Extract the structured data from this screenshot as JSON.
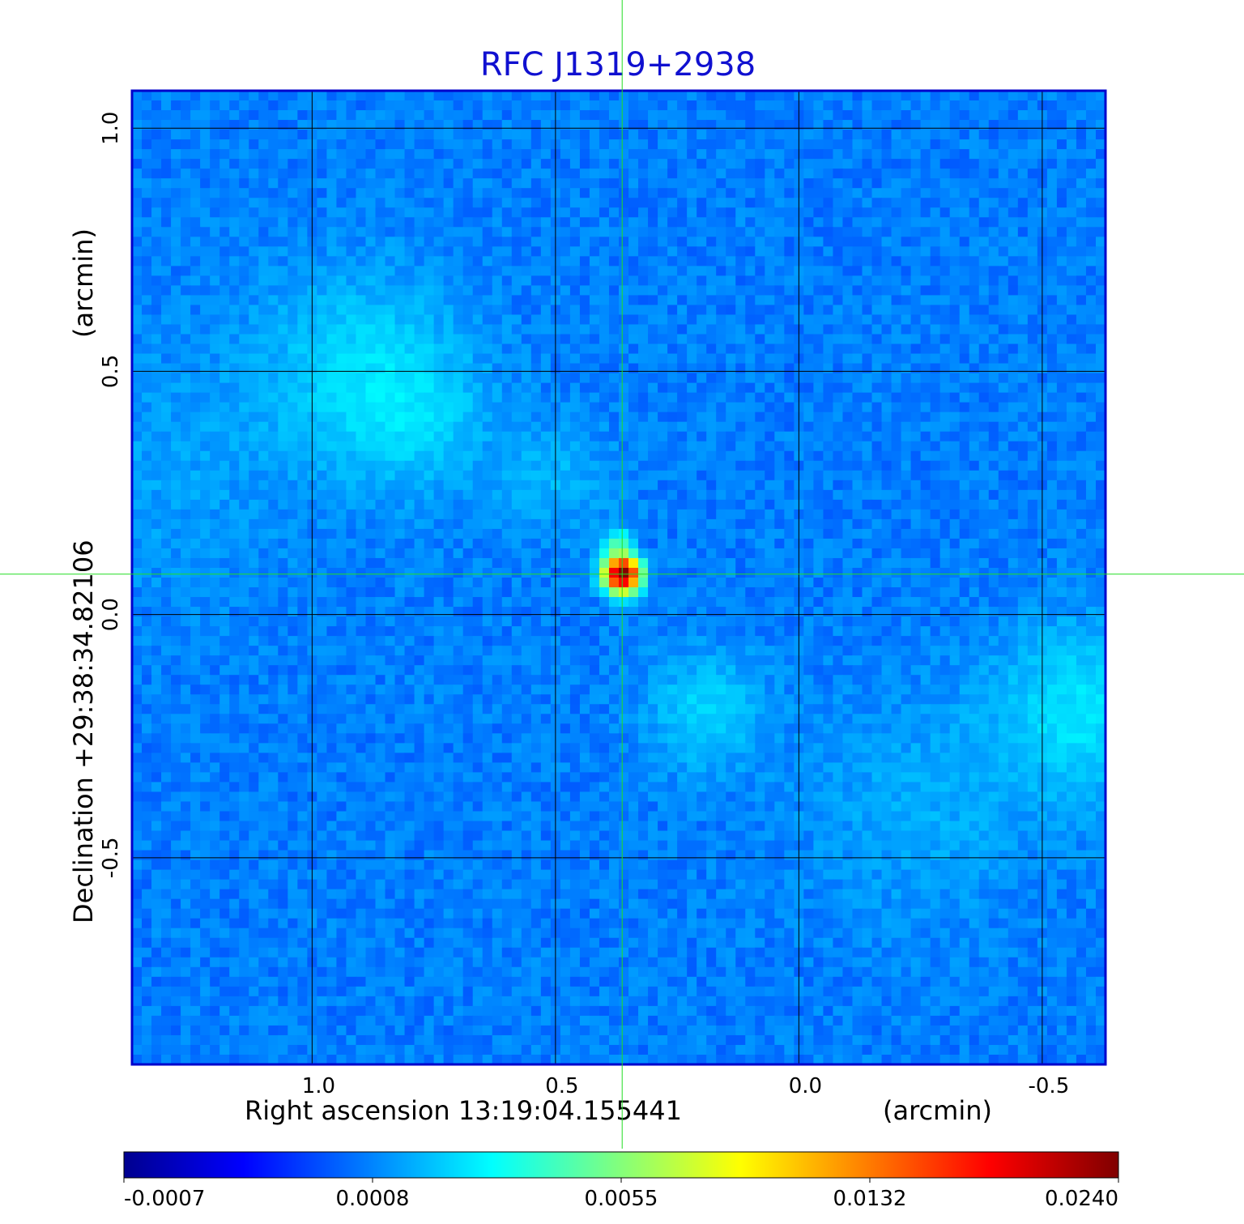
{
  "chart_data": {
    "type": "heatmap",
    "title": "RFC J1319+2938",
    "title_color": "#1010d0",
    "x_axis": {
      "label": "Right ascension  13:19:04.155441",
      "unit": "(arcmin)",
      "ticks": [
        1.0,
        0.5,
        0.0,
        -0.5
      ],
      "tick_labels": [
        "1.0",
        "0.5",
        "0.0",
        "-0.5"
      ],
      "range": [
        1.37,
        -0.63
      ]
    },
    "y_axis": {
      "label": "Declination  +29:38:34.82106",
      "unit": "(arcmin)",
      "ticks": [
        1.0,
        0.5,
        0.0,
        -0.5
      ],
      "tick_labels": [
        "1.0",
        "0.5",
        "0.0",
        "-0.5"
      ],
      "range": [
        -0.925,
        1.077
      ]
    },
    "grid": true,
    "crosshair": {
      "x": 0.363,
      "y": 0.083,
      "color": "#22dd22"
    },
    "source_peak": {
      "x": 0.363,
      "y": 0.083,
      "value": 0.024
    },
    "background_level": -0.0002,
    "colorbar": {
      "ticks": [
        -0.0007,
        0.0008,
        0.0055,
        0.0132,
        0.024
      ],
      "tick_labels": [
        "-0.0007",
        "0.0008",
        "0.0055",
        "0.0132",
        "0.0240"
      ],
      "colormap": [
        "#00008f",
        "#0000ff",
        "#00ffff",
        "#ffff00",
        "#ff0000",
        "#800000"
      ]
    }
  }
}
